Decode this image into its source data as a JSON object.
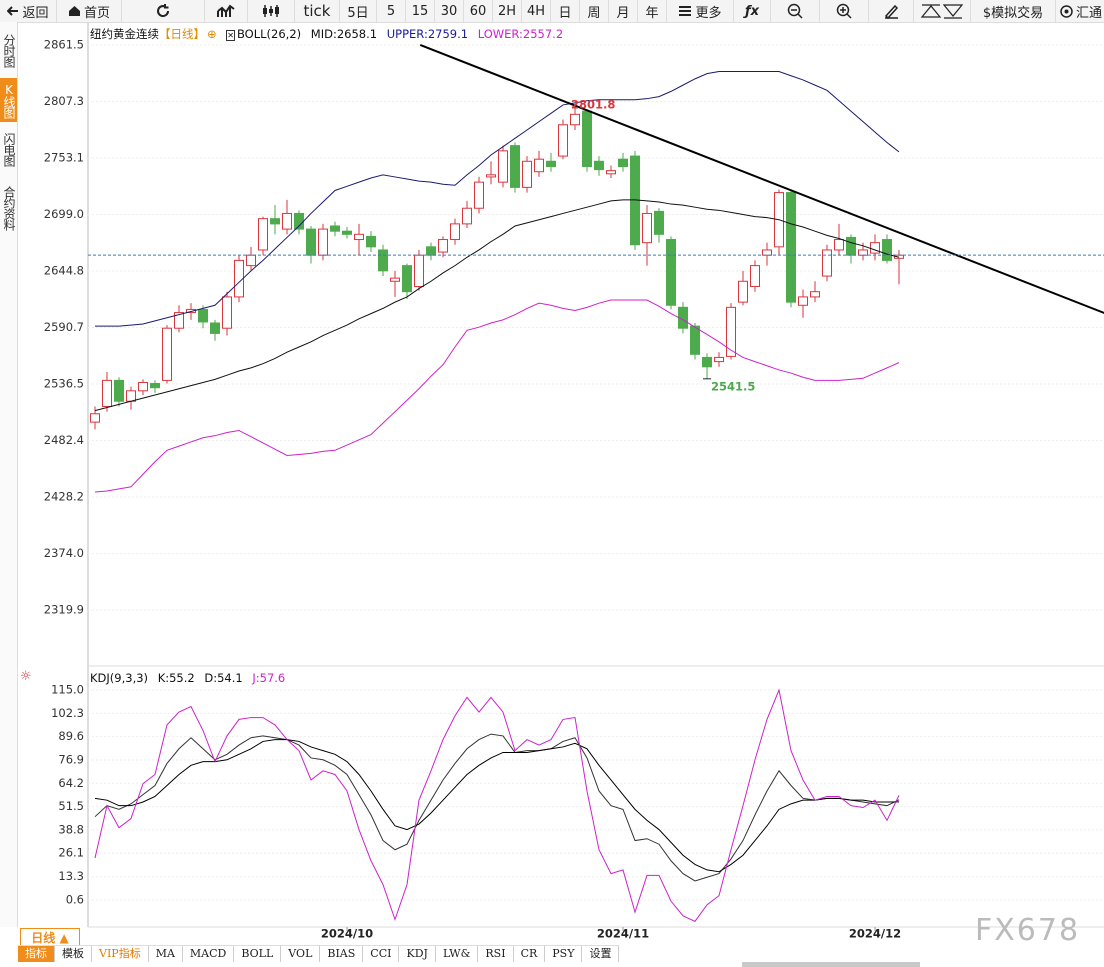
{
  "toolbar": {
    "items": [
      "返回",
      "首页",
      "tick",
      "5日",
      "5",
      "15",
      "30",
      "60",
      "2H",
      "4H",
      "日",
      "周",
      "月",
      "年",
      "更多",
      "ƒx",
      "$模拟交易",
      "汇通"
    ]
  },
  "side_tabs": [
    "分时图",
    "K线图",
    "闪电图",
    "合约资料"
  ],
  "price_chart": {
    "type": "candlestick",
    "title": "纽约黄金连续",
    "period": "【日线】",
    "indicator": "BOLL(26,2)",
    "mid_label": "MID:2658.1",
    "upper_label": "UPPER:2759.1",
    "lower_label": "LOWER:2557.2",
    "up_color": "#d9363e",
    "down_color": "#4daa4d",
    "mid_color": "#111111",
    "upper_color": "#1a1a6e",
    "lower_color": "#cc22cc",
    "ylim": [
      2267.2,
      2883.5
    ],
    "yticks": [
      2861.5,
      2807.3,
      2753.1,
      {
        "value": 2699.0,
        "label": "2699.0"
      },
      2644.8,
      2590.7,
      2536.5,
      2482.4,
      2428.2,
      {
        "value": 2374.0,
        "label": "2374.0"
      },
      2319.9
    ],
    "grid": true,
    "candles": {
      "open": [
        2500,
        2515,
        2540,
        2520,
        2530,
        2537,
        2540,
        2590,
        2605,
        2608,
        2595,
        2590,
        2620,
        2650,
        2665,
        2695,
        2685,
        2700,
        2685,
        2660,
        2688,
        2683,
        2675,
        2678,
        2665,
        2635,
        2650,
        2630,
        2668,
        2663,
        2675,
        2690,
        2705,
        2735,
        2730,
        2765,
        2725,
        2740,
        2750,
        2755,
        2785,
        2798,
        2750,
        2738,
        2752,
        2755,
        2672,
        2702,
        2675,
        2610,
        2592,
        2562,
        2558,
        2563,
        2615,
        2630,
        2660,
        2668,
        2720,
        2612,
        2620,
        2640,
        2665,
        2677,
        2660,
        2662,
        2675,
        2657
      ],
      "close": [
        2508,
        2540,
        2520,
        2530,
        2538,
        2533,
        2590,
        2605,
        2608,
        2596,
        2585,
        2620,
        2655,
        2660,
        2695,
        2690,
        2700,
        2685,
        2660,
        2685,
        2683,
        2680,
        2680,
        2668,
        2645,
        2638,
        2625,
        2660,
        2660,
        2675,
        2690,
        2705,
        2730,
        2737,
        2760,
        2725,
        2750,
        2752,
        2745,
        2785,
        2795,
        2745,
        2742,
        2741,
        2745,
        2670,
        2700,
        2680,
        2612,
        2590,
        2565,
        2553,
        2562,
        2610,
        2635,
        2650,
        2665,
        2720,
        2615,
        2620,
        2625,
        2665,
        2675,
        2660,
        2665,
        2672,
        2655,
        2660
      ],
      "high": [
        2515,
        2548,
        2543,
        2534,
        2541,
        2540,
        2593,
        2612,
        2614,
        2612,
        2598,
        2625,
        2660,
        2668,
        2697,
        2708,
        2713,
        2703,
        2688,
        2690,
        2692,
        2687,
        2690,
        2683,
        2670,
        2645,
        2652,
        2665,
        2672,
        2678,
        2695,
        2712,
        2735,
        2750,
        2765,
        2768,
        2755,
        2760,
        2758,
        2790,
        2801.8,
        2800,
        2755,
        2746,
        2758,
        2760,
        2708,
        2705,
        2678,
        2615,
        2595,
        2566,
        2567,
        2614,
        2645,
        2655,
        2672,
        2723,
        2722,
        2627,
        2635,
        2670,
        2690,
        2680,
        2672,
        2680,
        2680,
        2665
      ],
      "low": [
        2493,
        2510,
        2515,
        2512,
        2526,
        2528,
        2537,
        2586,
        2598,
        2590,
        2578,
        2583,
        2615,
        2645,
        2660,
        2680,
        2680,
        2680,
        2652,
        2655,
        2678,
        2676,
        2660,
        2663,
        2640,
        2620,
        2618,
        2626,
        2655,
        2658,
        2670,
        2686,
        2700,
        2728,
        2725,
        2720,
        2720,
        2735,
        2740,
        2752,
        2780,
        2740,
        2736,
        2734,
        2740,
        2665,
        2650,
        2672,
        2608,
        2585,
        2560,
        2541.5,
        2553,
        2560,
        2612,
        2625,
        2650,
        2660,
        2610,
        2600,
        2615,
        2635,
        2660,
        2652,
        2655,
        2655,
        2652,
        2632
      ]
    },
    "mid": [
      2511,
      2514,
      2517,
      2520,
      2523,
      2526,
      2529,
      2532,
      2535,
      2538,
      2541,
      2545,
      2549,
      2552,
      2556,
      2561,
      2567,
      2572,
      2577,
      2583,
      2588,
      2593,
      2599,
      2604,
      2609,
      2615,
      2620,
      2628,
      2635,
      2643,
      2650,
      2658,
      2665,
      2673,
      2680,
      2688,
      2691,
      2694,
      2697,
      2700,
      2703,
      2706,
      2709,
      2712,
      2713,
      2713,
      2712,
      2711,
      2709,
      2708,
      2706,
      2704,
      2703,
      2701,
      2699,
      2697,
      2696,
      2694,
      2690,
      2687,
      2683,
      2679,
      2676,
      2672,
      2669,
      2665,
      2661,
      2658
    ],
    "upper": [
      2592,
      2592,
      2592,
      2593,
      2594,
      2597,
      2600,
      2603,
      2606,
      2609,
      2612,
      2623,
      2634,
      2645,
      2655,
      2666,
      2677,
      2688,
      2700,
      2711,
      2722,
      2726,
      2730,
      2734,
      2737,
      2735,
      2733,
      2731,
      2730,
      2728,
      2727,
      2737,
      2746,
      2756,
      2764,
      2772,
      2780,
      2788,
      2796,
      2804,
      2806,
      2808,
      2809,
      2809,
      2809,
      2809,
      2810,
      2812,
      2817,
      2823,
      2829,
      2834,
      2836,
      2836,
      2836,
      2836,
      2836,
      2836,
      2832,
      2828,
      2823,
      2818,
      2808,
      2798,
      2788,
      2778,
      2768,
      2759
    ],
    "lower": [
      2433,
      2434,
      2436,
      2438,
      2450,
      2462,
      2473,
      2477,
      2481,
      2485,
      2487,
      2490,
      2492,
      2486,
      2480,
      2474,
      2468,
      2469,
      2470,
      2472,
      2473,
      2478,
      2483,
      2488,
      2499,
      2510,
      2521,
      2532,
      2544,
      2555,
      2572,
      2588,
      2591,
      2595,
      2598,
      2603,
      2609,
      2614,
      2612,
      2609,
      2607,
      2610,
      2614,
      2617,
      2617,
      2617,
      2617,
      2611,
      2604,
      2598,
      2591,
      2584,
      2577,
      2569,
      2562,
      2558,
      2554,
      2550,
      2547,
      2543,
      2540,
      2540,
      2540,
      2541,
      2542,
      2547,
      2552,
      2557
    ],
    "trendline": {
      "start": [
        27.1,
        2861.5
      ],
      "end": [
        84.1,
        2604.6
      ],
      "color": "#000000"
    },
    "high_mark": 40,
    "low_mark": 51
  },
  "kdj": {
    "type": "line",
    "indicator": "KDJ(9,3,3)",
    "k_label": "K:55.2",
    "d_label": "D:54.1",
    "j_label": "J:57.6",
    "ylim": [
      -13,
      127
    ],
    "yticks": [
      {
        "value": 115.0,
        "label": "115.0"
      },
      102.3,
      89.6,
      76.9,
      64.2,
      51.5,
      38.8,
      26.1,
      13.3,
      0.6
    ],
    "grid": true,
    "series": [
      {
        "name": "K",
        "color": "#333333",
        "values": [
          46,
          52,
          50,
          53,
          58,
          63,
          75,
          83,
          89,
          83,
          77,
          80,
          85,
          89,
          90,
          89,
          88,
          85,
          78,
          77,
          74,
          69,
          58,
          47,
          33,
          28,
          31,
          44,
          55,
          66,
          75,
          83,
          88,
          91,
          90,
          81,
          82,
          82,
          83,
          87,
          89,
          78,
          60,
          52,
          50,
          33,
          34,
          31,
          22,
          15,
          11,
          13,
          15,
          23,
          33,
          47,
          60,
          71,
          63,
          56,
          55,
          56,
          56,
          55,
          54,
          53,
          52,
          55.2
        ]
      },
      {
        "name": "D",
        "color": "#000000",
        "values": [
          56,
          55,
          52,
          52,
          54,
          57,
          63,
          69,
          74,
          76,
          76,
          77,
          80,
          83,
          87,
          88,
          88,
          87,
          84,
          82,
          80,
          76,
          69,
          60,
          50,
          41,
          39,
          42,
          48,
          55,
          62,
          69,
          74,
          78,
          81,
          81,
          81,
          82,
          83,
          84,
          86,
          83,
          74,
          66,
          58,
          50,
          44,
          39,
          32,
          25,
          20,
          17,
          16,
          20,
          25,
          33,
          41,
          50,
          53,
          55,
          55,
          56,
          56,
          55,
          55,
          54,
          54,
          54.1
        ]
      },
      {
        "name": "J",
        "color": "#cc22cc",
        "values": [
          23.5,
          52,
          40,
          45,
          64,
          69,
          96,
          103,
          106,
          93,
          76,
          90,
          99,
          100,
          100,
          96,
          88,
          82,
          66,
          71,
          69,
          60,
          39,
          22,
          9,
          -10,
          9,
          55,
          71,
          88,
          101,
          111,
          103,
          111,
          103,
          82,
          88,
          85,
          88,
          99,
          100,
          60,
          28,
          15,
          17,
          -6,
          14,
          14,
          0,
          -8,
          -11,
          -2,
          3,
          28,
          52,
          77,
          99,
          115,
          82,
          66,
          55,
          57,
          57,
          52,
          51,
          55,
          44,
          57.6
        ]
      }
    ]
  },
  "x_labels": [
    {
      "index": 21,
      "label": "2024/10"
    },
    {
      "index": 44,
      "label": "2024/11"
    },
    {
      "index": 65,
      "label": "2024/12"
    }
  ],
  "bottom": {
    "period": "日线 ▲",
    "tabs": [
      "指标",
      "模板",
      "VIP指标",
      "MA",
      "MACD",
      "BOLL",
      "VOL",
      "BIAS",
      "CCI",
      "KDJ",
      "LW&",
      "RSI",
      "CR",
      "PSY",
      "设置"
    ]
  },
  "watermark": "FX678"
}
